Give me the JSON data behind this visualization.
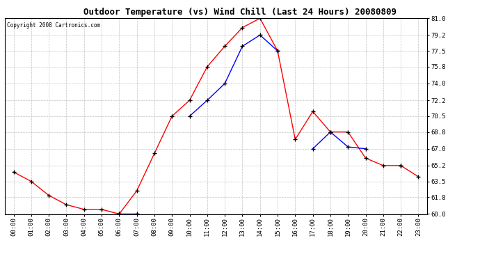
{
  "title": "Outdoor Temperature (vs) Wind Chill (Last 24 Hours) 20080809",
  "copyright": "Copyright 2008 Cartronics.com",
  "hours": [
    0,
    1,
    2,
    3,
    4,
    5,
    6,
    7,
    8,
    9,
    10,
    11,
    12,
    13,
    14,
    15,
    16,
    17,
    18,
    19,
    20,
    21,
    22,
    23
  ],
  "x_labels": [
    "00:00",
    "01:00",
    "02:00",
    "03:00",
    "04:00",
    "05:00",
    "06:00",
    "07:00",
    "08:00",
    "09:00",
    "10:00",
    "11:00",
    "12:00",
    "13:00",
    "14:00",
    "15:00",
    "16:00",
    "17:00",
    "18:00",
    "19:00",
    "20:00",
    "21:00",
    "22:00",
    "23:00"
  ],
  "temp": [
    64.5,
    63.5,
    62.0,
    61.0,
    60.5,
    60.5,
    60.0,
    62.5,
    66.5,
    70.5,
    72.2,
    75.8,
    78.0,
    80.0,
    81.0,
    77.5,
    68.0,
    71.0,
    68.8,
    68.8,
    66.0,
    65.2,
    65.2,
    64.0
  ],
  "windchill": [
    null,
    null,
    null,
    null,
    null,
    null,
    60.0,
    60.0,
    null,
    null,
    70.5,
    72.2,
    74.0,
    78.0,
    79.2,
    77.5,
    null,
    67.0,
    68.8,
    67.2,
    67.0,
    null,
    65.2,
    null
  ],
  "temp_color": "#FF0000",
  "windchill_color": "#0000FF",
  "bg_color": "#FFFFFF",
  "plot_bg_color": "#FFFFFF",
  "grid_color": "#AAAAAA",
  "ylim": [
    60.0,
    81.0
  ],
  "yticks": [
    60.0,
    61.8,
    63.5,
    65.2,
    67.0,
    68.8,
    70.5,
    72.2,
    74.0,
    75.8,
    77.5,
    79.2,
    81.0
  ]
}
